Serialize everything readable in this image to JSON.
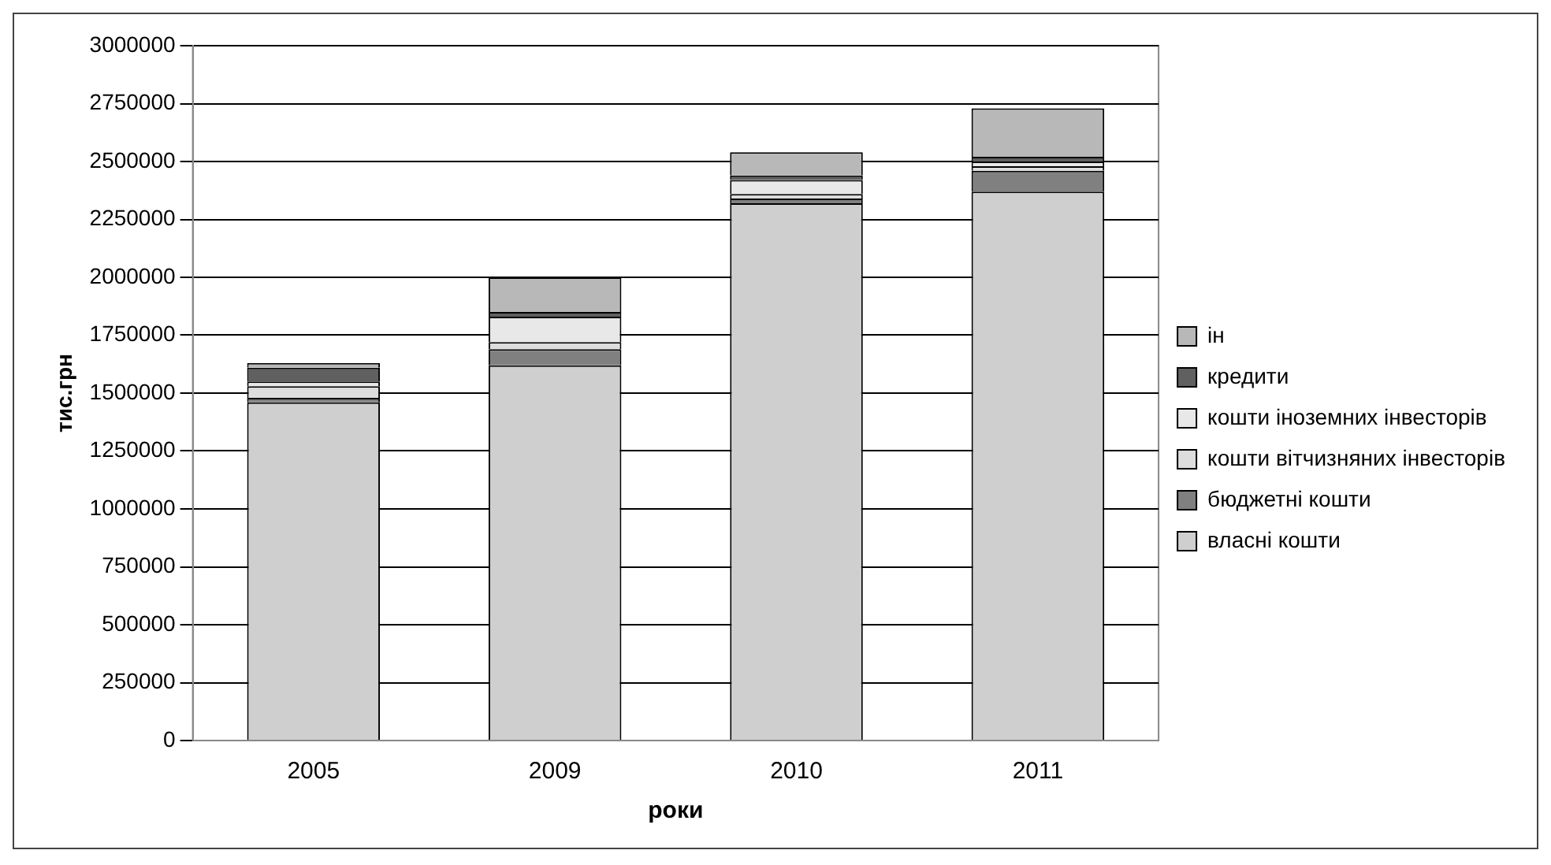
{
  "chart_data": {
    "type": "bar",
    "stacked": true,
    "categories": [
      "2005",
      "2009",
      "2010",
      "2011"
    ],
    "xlabel": "роки",
    "ylabel": "тис.грн",
    "ylim": [
      0,
      3000000
    ],
    "yticks": [
      0,
      250000,
      500000,
      750000,
      1000000,
      1250000,
      1500000,
      1750000,
      2000000,
      2250000,
      2500000,
      2750000,
      3000000
    ],
    "grid": "y",
    "legend": "right",
    "series": [
      {
        "name": "власні кошти",
        "color": "#cfcfcf",
        "values": [
          1460000,
          1620000,
          2320000,
          2370000
        ]
      },
      {
        "name": "бюджетні кошти",
        "color": "#808080",
        "values": [
          20000,
          70000,
          20000,
          90000
        ]
      },
      {
        "name": "кошти вітчизняних інвесторів",
        "color": "#dddddd",
        "values": [
          50000,
          30000,
          20000,
          20000
        ]
      },
      {
        "name": "кошти іноземних інвесторів",
        "color": "#e8e8e8",
        "values": [
          20000,
          110000,
          60000,
          20000
        ]
      },
      {
        "name": "кредити",
        "color": "#606060",
        "values": [
          60000,
          20000,
          20000,
          20000
        ]
      },
      {
        "name": "ін",
        "color": "#b8b8b8",
        "values": [
          20000,
          150000,
          100000,
          210000
        ]
      }
    ]
  }
}
